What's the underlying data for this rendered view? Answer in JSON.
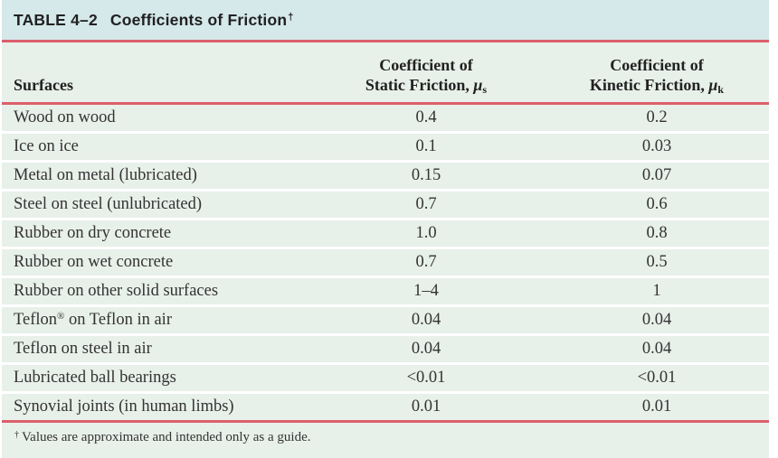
{
  "colors": {
    "title_bg": "#d5e8ea",
    "row_bg": "#e8f0ea",
    "rule_red": "#dc5f6b",
    "text": "#333333"
  },
  "table": {
    "title_label": "TABLE 4–2",
    "title_text": "Coefficients of Friction",
    "title_sup": "†",
    "header": {
      "surfaces": "Surfaces",
      "static": {
        "line1": "Coefficient of",
        "line2": "Static Friction, ",
        "mu": "μ",
        "sub": "s"
      },
      "kinetic": {
        "line1": "Coefficient of",
        "line2": "Kinetic Friction, ",
        "mu": "μ",
        "sub": "k"
      }
    },
    "rows": [
      {
        "surface": "Wood on wood",
        "sup": "",
        "surface_rest": "",
        "static": "0.4",
        "kinetic": "0.2"
      },
      {
        "surface": "Ice on ice",
        "sup": "",
        "surface_rest": "",
        "static": "0.1",
        "kinetic": "0.03"
      },
      {
        "surface": "Metal on metal (lubricated)",
        "sup": "",
        "surface_rest": "",
        "static": "0.15",
        "kinetic": "0.07"
      },
      {
        "surface": "Steel on steel (unlubricated)",
        "sup": "",
        "surface_rest": "",
        "static": "0.7",
        "kinetic": "0.6"
      },
      {
        "surface": "Rubber on dry concrete",
        "sup": "",
        "surface_rest": "",
        "static": "1.0",
        "kinetic": "0.8"
      },
      {
        "surface": "Rubber on wet concrete",
        "sup": "",
        "surface_rest": "",
        "static": "0.7",
        "kinetic": "0.5"
      },
      {
        "surface": "Rubber on other solid surfaces",
        "sup": "",
        "surface_rest": "",
        "static": "1–4",
        "kinetic": "1"
      },
      {
        "surface": "Teflon",
        "sup": "®",
        "surface_rest": " on Teflon in air",
        "static": "0.04",
        "kinetic": "0.04"
      },
      {
        "surface": "Teflon on steel in air",
        "sup": "",
        "surface_rest": "",
        "static": "0.04",
        "kinetic": "0.04"
      },
      {
        "surface": "Lubricated ball bearings",
        "sup": "",
        "surface_rest": "",
        "static": "<0.01",
        "kinetic": "<0.01"
      },
      {
        "surface": "Synovial joints (in human limbs)",
        "sup": "",
        "surface_rest": "",
        "static": "0.01",
        "kinetic": "0.01"
      }
    ],
    "footnote_sup": "†",
    "footnote_text": "Values are approximate and intended only as a guide."
  }
}
